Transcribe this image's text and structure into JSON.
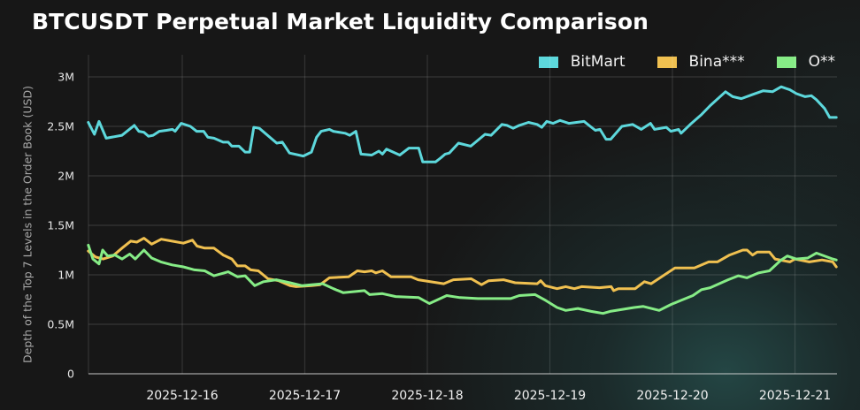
{
  "chart_data": {
    "type": "line",
    "title": "BTCUSDT Perpetual Market Liquidity Comparison",
    "xlabel": "",
    "ylabel": "Depth of the Top 7 Levels in the Order Book  (USD)",
    "x_unit": "hours since 2025-12-15 00:00",
    "xlim_hours": [
      5.6,
      152.1
    ],
    "ylim": [
      0,
      3200000
    ],
    "y_ticks": [
      0,
      500000,
      1000000,
      1500000,
      2000000,
      2500000,
      3000000
    ],
    "y_tick_labels": [
      "0",
      "0.5M",
      "1M",
      "1.5M",
      "2M",
      "2.5M",
      "3M"
    ],
    "x_ticks_hours": [
      24,
      48,
      72,
      96,
      120,
      144
    ],
    "x_tick_labels": [
      "2025-12-16",
      "2025-12-17",
      "2025-12-18",
      "2025-12-19",
      "2025-12-20",
      "2025-12-21"
    ],
    "grid": true,
    "legend_position": "top-right",
    "value_unit": "millions USD",
    "series": [
      {
        "name": "BitMart",
        "color": "#5DD8DC",
        "x": [
          5.6,
          6.8,
          7.7,
          9.1,
          12.2,
          14.6,
          15.5,
          16.5,
          17.4,
          18.3,
          19.5,
          20.9,
          22.1,
          22.6,
          23.8,
          25.6,
          26.8,
          28.2,
          29.0,
          30.2,
          32.0,
          33.0,
          33.7,
          35.1,
          36.3,
          37.2,
          38.0,
          39.1,
          42.5,
          43.6,
          45.0,
          47.7,
          49.3,
          50.3,
          51.2,
          52.8,
          53.6,
          55.9,
          56.8,
          58.0,
          59.0,
          61.1,
          62.5,
          63.2,
          64.0,
          66.6,
          68.4,
          70.3,
          71.1,
          73.6,
          74.6,
          75.5,
          76.3,
          78.1,
          80.5,
          83.3,
          84.5,
          86.6,
          87.6,
          88.8,
          90.0,
          91.8,
          93.5,
          94.4,
          95.4,
          96.6,
          98.0,
          99.7,
          102.7,
          103.9,
          104.9,
          105.8,
          107.0,
          107.9,
          110.1,
          112.2,
          113.9,
          115.7,
          116.5,
          118.8,
          119.7,
          121.2,
          121.7,
          123.5,
          125.7,
          127.4,
          130.4,
          131.8,
          133.5,
          135.6,
          137.8,
          139.6,
          141.3,
          143.0,
          144.3,
          146.0,
          147.2,
          148.2,
          149.8,
          150.8,
          152.1
        ],
        "values": [
          2.54,
          2.42,
          2.55,
          2.38,
          2.41,
          2.51,
          2.45,
          2.44,
          2.4,
          2.41,
          2.45,
          2.46,
          2.47,
          2.45,
          2.53,
          2.5,
          2.45,
          2.45,
          2.39,
          2.38,
          2.34,
          2.34,
          2.3,
          2.3,
          2.24,
          2.24,
          2.49,
          2.48,
          2.33,
          2.34,
          2.23,
          2.2,
          2.24,
          2.39,
          2.45,
          2.47,
          2.45,
          2.43,
          2.41,
          2.45,
          2.22,
          2.21,
          2.25,
          2.22,
          2.27,
          2.21,
          2.28,
          2.28,
          2.14,
          2.14,
          2.18,
          2.22,
          2.23,
          2.33,
          2.3,
          2.42,
          2.41,
          2.52,
          2.51,
          2.48,
          2.51,
          2.54,
          2.52,
          2.49,
          2.55,
          2.53,
          2.56,
          2.53,
          2.55,
          2.5,
          2.46,
          2.47,
          2.37,
          2.37,
          2.5,
          2.52,
          2.47,
          2.53,
          2.47,
          2.49,
          2.45,
          2.47,
          2.43,
          2.52,
          2.62,
          2.71,
          2.85,
          2.8,
          2.78,
          2.82,
          2.86,
          2.85,
          2.9,
          2.87,
          2.83,
          2.8,
          2.81,
          2.77,
          2.68,
          2.59,
          2.59
        ]
      },
      {
        "name": "Bina***",
        "color": "#F0C050",
        "x": [
          5.6,
          7.0,
          8.5,
          10.4,
          12.2,
          13.9,
          15.1,
          16.5,
          18.0,
          19.9,
          22.0,
          24.2,
          26.0,
          26.9,
          28.4,
          30.2,
          32.0,
          33.7,
          34.8,
          36.3,
          37.4,
          38.9,
          40.8,
          42.9,
          45.1,
          46.3,
          49.3,
          51.0,
          52.8,
          56.6,
          58.3,
          59.7,
          61.1,
          61.9,
          63.2,
          64.9,
          68.8,
          70.2,
          75.2,
          77.1,
          80.6,
          82.6,
          84.0,
          86.9,
          89.2,
          93.5,
          94.2,
          95.1,
          97.4,
          99.1,
          100.8,
          102.2,
          105.7,
          108.0,
          108.5,
          109.4,
          112.7,
          114.5,
          115.8,
          120.5,
          124.3,
          127.1,
          128.8,
          131.2,
          133.8,
          134.6,
          135.7,
          136.6,
          139.0,
          140.1,
          143.0,
          144.0,
          146.8,
          149.3,
          151.4,
          152.1
        ],
        "values": [
          1.24,
          1.18,
          1.16,
          1.19,
          1.27,
          1.34,
          1.33,
          1.37,
          1.31,
          1.36,
          1.34,
          1.32,
          1.35,
          1.29,
          1.27,
          1.27,
          1.2,
          1.16,
          1.09,
          1.09,
          1.05,
          1.04,
          0.96,
          0.94,
          0.89,
          0.88,
          0.89,
          0.9,
          0.97,
          0.98,
          1.04,
          1.03,
          1.04,
          1.02,
          1.04,
          0.98,
          0.98,
          0.95,
          0.91,
          0.95,
          0.96,
          0.9,
          0.94,
          0.95,
          0.92,
          0.91,
          0.94,
          0.89,
          0.86,
          0.88,
          0.86,
          0.88,
          0.87,
          0.88,
          0.84,
          0.86,
          0.86,
          0.93,
          0.91,
          1.07,
          1.07,
          1.13,
          1.13,
          1.2,
          1.25,
          1.25,
          1.2,
          1.23,
          1.23,
          1.16,
          1.13,
          1.16,
          1.13,
          1.15,
          1.13,
          1.08
        ]
      },
      {
        "name": "O**",
        "color": "#86EC86",
        "x": [
          5.6,
          6.5,
          7.7,
          8.4,
          9.4,
          10.8,
          12.2,
          13.7,
          14.8,
          16.5,
          18.0,
          19.8,
          22.0,
          24.2,
          26.4,
          28.4,
          30.2,
          33.0,
          34.8,
          36.3,
          38.2,
          39.9,
          42.4,
          45.1,
          47.5,
          49.3,
          51.5,
          53.6,
          55.5,
          59.7,
          60.7,
          63.2,
          65.8,
          70.3,
          72.4,
          75.8,
          78.4,
          81.9,
          88.3,
          90.0,
          93.1,
          95.2,
          97.4,
          99.1,
          101.5,
          104.1,
          106.4,
          107.8,
          112.5,
          114.3,
          117.4,
          119.7,
          121.6,
          124.0,
          125.7,
          127.4,
          130.9,
          132.9,
          134.6,
          136.9,
          139.0,
          141.3,
          142.5,
          144.2,
          146.5,
          148.2,
          151.4,
          152.1
        ],
        "values": [
          1.3,
          1.16,
          1.11,
          1.25,
          1.19,
          1.2,
          1.16,
          1.21,
          1.16,
          1.25,
          1.17,
          1.13,
          1.1,
          1.08,
          1.05,
          1.04,
          0.99,
          1.03,
          0.98,
          0.99,
          0.89,
          0.93,
          0.95,
          0.92,
          0.89,
          0.9,
          0.91,
          0.86,
          0.82,
          0.84,
          0.8,
          0.81,
          0.78,
          0.77,
          0.71,
          0.79,
          0.77,
          0.76,
          0.76,
          0.79,
          0.8,
          0.74,
          0.67,
          0.64,
          0.66,
          0.63,
          0.61,
          0.63,
          0.67,
          0.68,
          0.64,
          0.7,
          0.74,
          0.79,
          0.85,
          0.87,
          0.95,
          0.99,
          0.97,
          1.02,
          1.04,
          1.15,
          1.19,
          1.16,
          1.17,
          1.22,
          1.16,
          1.15
        ]
      }
    ]
  }
}
